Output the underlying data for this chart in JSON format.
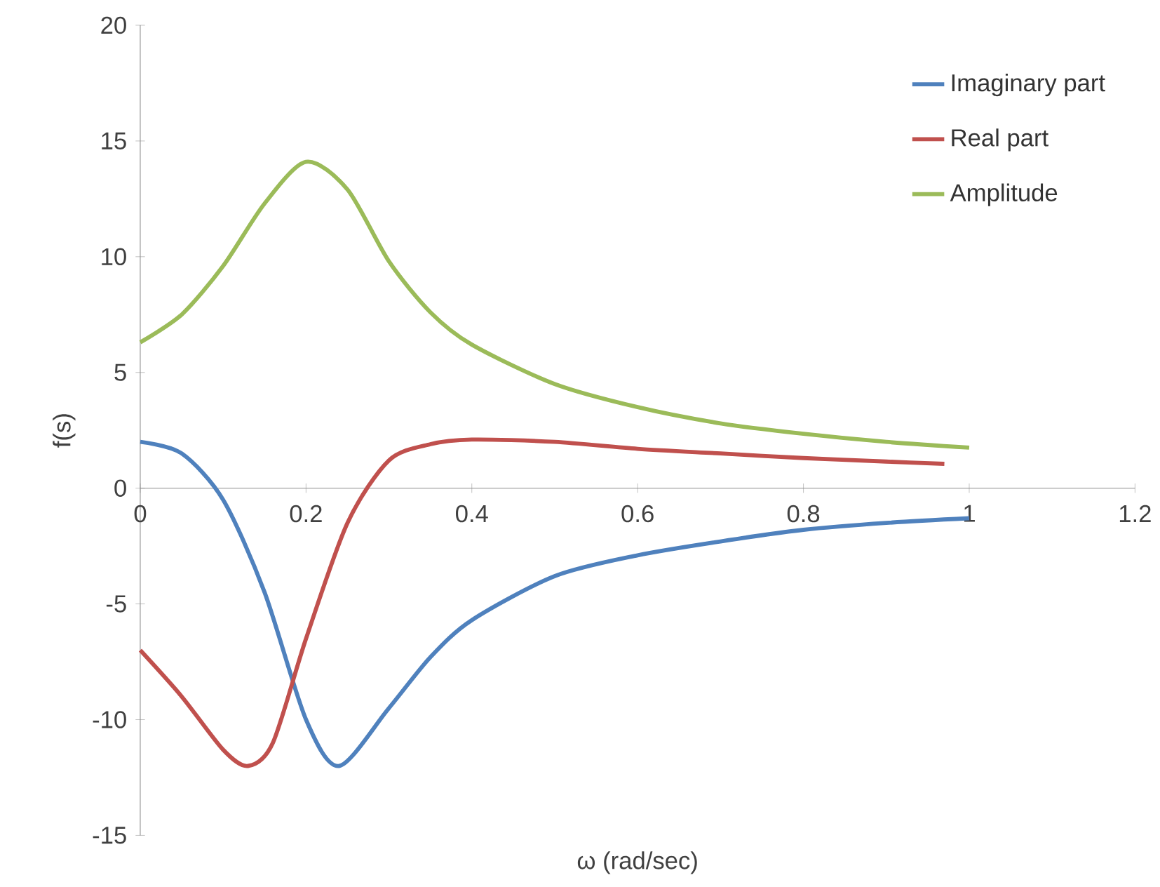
{
  "chart_data": {
    "type": "line",
    "xlabel": "ω (rad/sec)",
    "ylabel": "f(s)",
    "xlim": [
      0,
      1.2
    ],
    "ylim": [
      -15,
      20
    ],
    "xticks": [
      0,
      0.2,
      0.4,
      0.6,
      0.8,
      1,
      1.2
    ],
    "yticks": [
      -15,
      -10,
      -5,
      0,
      5,
      10,
      15,
      20
    ],
    "grid": false,
    "legend": "top right",
    "marker": "none",
    "line_style": "solid",
    "series": [
      {
        "name": "Imaginary part",
        "color": "#4f81bd",
        "x": [
          0,
          0.05,
          0.1,
          0.15,
          0.2,
          0.24,
          0.3,
          0.35,
          0.4,
          0.5,
          0.6,
          0.7,
          0.8,
          0.9,
          1.0
        ],
        "values": [
          2,
          1.5,
          -0.5,
          -4.5,
          -10,
          -12,
          -9.5,
          -7.3,
          -5.7,
          -3.8,
          -2.9,
          -2.3,
          -1.8,
          -1.5,
          -1.3
        ]
      },
      {
        "name": "Real part",
        "color": "#c0504d",
        "x": [
          0,
          0.05,
          0.1,
          0.13,
          0.16,
          0.2,
          0.25,
          0.3,
          0.35,
          0.4,
          0.5,
          0.6,
          0.7,
          0.8,
          0.9,
          0.97
        ],
        "values": [
          -7,
          -9,
          -11.3,
          -12,
          -11,
          -6.5,
          -1.5,
          1.2,
          1.9,
          2.1,
          2.0,
          1.7,
          1.5,
          1.3,
          1.15,
          1.05
        ]
      },
      {
        "name": "Amplitude",
        "color": "#9bbb59",
        "x": [
          0,
          0.05,
          0.1,
          0.15,
          0.2,
          0.25,
          0.3,
          0.35,
          0.4,
          0.5,
          0.6,
          0.7,
          0.8,
          0.9,
          1.0
        ],
        "values": [
          6.3,
          7.5,
          9.6,
          12.3,
          14.1,
          12.9,
          9.8,
          7.6,
          6.2,
          4.5,
          3.5,
          2.8,
          2.35,
          2.0,
          1.75
        ]
      }
    ]
  }
}
